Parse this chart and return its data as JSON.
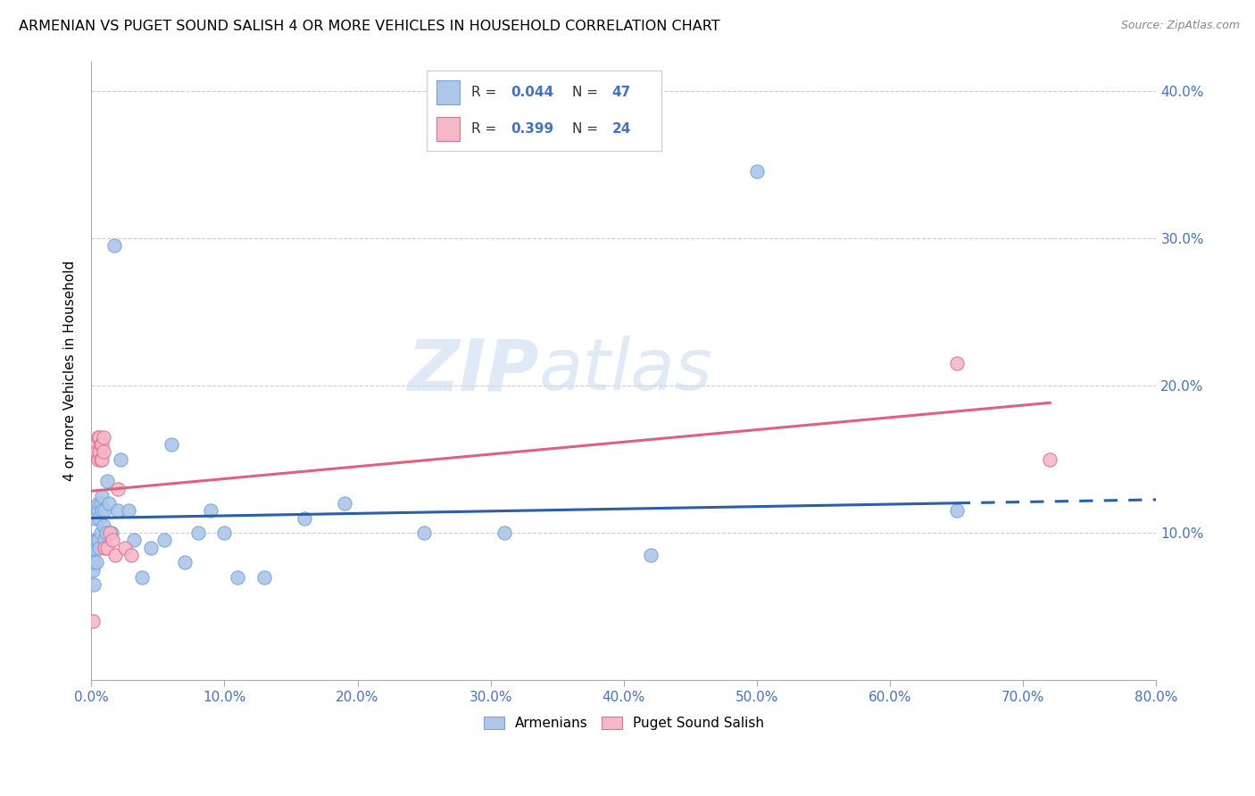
{
  "title": "ARMENIAN VS PUGET SOUND SALISH 4 OR MORE VEHICLES IN HOUSEHOLD CORRELATION CHART",
  "source": "Source: ZipAtlas.com",
  "ylabel": "4 or more Vehicles in Household",
  "xlim": [
    0.0,
    0.8
  ],
  "ylim": [
    0.0,
    0.42
  ],
  "armenian_color": "#aec6e8",
  "armenian_edge_color": "#6fa8dc",
  "salish_color": "#f4b8c8",
  "salish_edge_color": "#e07090",
  "armenian_line_color": "#2b5fa8",
  "salish_line_color": "#e06080",
  "tick_color": "#4472c4",
  "watermark_color": "#ccddf0",
  "armenian_R": 0.044,
  "armenian_N": 47,
  "salish_R": 0.399,
  "salish_N": 24,
  "armenian_x": [
    0.001,
    0.001,
    0.002,
    0.002,
    0.002,
    0.003,
    0.003,
    0.004,
    0.004,
    0.005,
    0.005,
    0.005,
    0.006,
    0.006,
    0.007,
    0.007,
    0.008,
    0.008,
    0.009,
    0.01,
    0.01,
    0.011,
    0.012,
    0.013,
    0.015,
    0.017,
    0.02,
    0.022,
    0.028,
    0.032,
    0.038,
    0.045,
    0.055,
    0.06,
    0.07,
    0.08,
    0.09,
    0.1,
    0.11,
    0.13,
    0.16,
    0.19,
    0.25,
    0.31,
    0.42,
    0.5,
    0.65
  ],
  "armenian_y": [
    0.085,
    0.075,
    0.09,
    0.08,
    0.065,
    0.11,
    0.095,
    0.095,
    0.08,
    0.115,
    0.12,
    0.095,
    0.11,
    0.09,
    0.12,
    0.1,
    0.115,
    0.125,
    0.105,
    0.115,
    0.095,
    0.1,
    0.135,
    0.12,
    0.1,
    0.295,
    0.115,
    0.15,
    0.115,
    0.095,
    0.07,
    0.09,
    0.095,
    0.16,
    0.08,
    0.1,
    0.115,
    0.1,
    0.07,
    0.07,
    0.11,
    0.12,
    0.1,
    0.1,
    0.085,
    0.345,
    0.115
  ],
  "salish_x": [
    0.001,
    0.002,
    0.003,
    0.004,
    0.005,
    0.005,
    0.006,
    0.006,
    0.007,
    0.007,
    0.008,
    0.008,
    0.009,
    0.009,
    0.01,
    0.012,
    0.014,
    0.016,
    0.018,
    0.02,
    0.025,
    0.03,
    0.65,
    0.72
  ],
  "salish_y": [
    0.04,
    0.155,
    0.16,
    0.155,
    0.15,
    0.165,
    0.155,
    0.165,
    0.15,
    0.16,
    0.16,
    0.15,
    0.165,
    0.155,
    0.09,
    0.09,
    0.1,
    0.095,
    0.085,
    0.13,
    0.09,
    0.085,
    0.215,
    0.15
  ]
}
